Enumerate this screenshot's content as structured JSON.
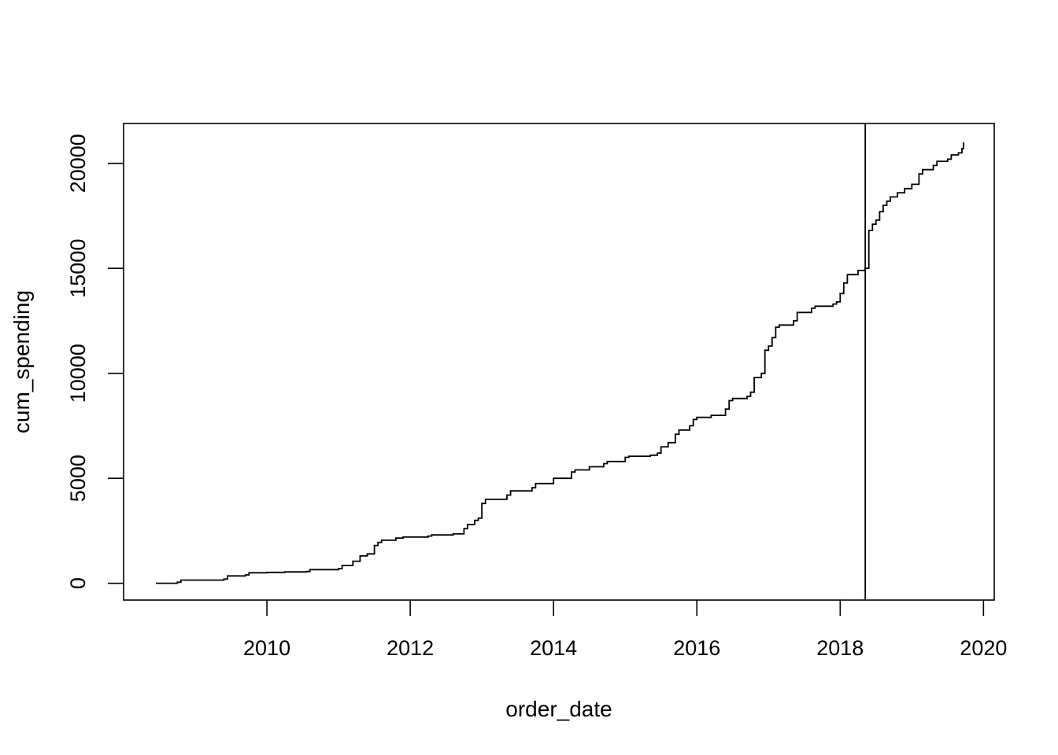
{
  "chart_data": {
    "type": "line",
    "title": "",
    "xlabel": "order_date",
    "ylabel": "cum_spending",
    "xlim": [
      2008.0,
      2020.15
    ],
    "ylim": [
      -800,
      21900
    ],
    "x_ticks": [
      "2010",
      "2012",
      "2014",
      "2016",
      "2018",
      "2020"
    ],
    "y_ticks": [
      "0",
      "5000",
      "10000",
      "15000",
      "20000"
    ],
    "grid": false,
    "legend": "none",
    "line_color": "#000000",
    "vline": {
      "x": 2018.35
    },
    "series": [
      {
        "x": [
          2008.45,
          2008.75,
          2008.8,
          2009.4,
          2009.45,
          2009.7,
          2009.75,
          2010.0,
          2010.25,
          2010.55,
          2010.6,
          2011.0,
          2011.05,
          2011.2,
          2011.3,
          2011.4,
          2011.5,
          2011.55,
          2011.6,
          2011.8,
          2011.9,
          2012.0,
          2012.25,
          2012.3,
          2012.6,
          2012.75,
          2012.8,
          2012.9,
          2012.95,
          2013.0,
          2013.05,
          2013.35,
          2013.4,
          2013.7,
          2013.75,
          2014.0,
          2014.25,
          2014.3,
          2014.5,
          2014.7,
          2014.75,
          2015.0,
          2015.05,
          2015.35,
          2015.45,
          2015.5,
          2015.6,
          2015.7,
          2015.75,
          2015.9,
          2015.95,
          2016.0,
          2016.2,
          2016.4,
          2016.45,
          2016.5,
          2016.7,
          2016.75,
          2016.8,
          2016.9,
          2016.95,
          2017.0,
          2017.05,
          2017.1,
          2017.15,
          2017.35,
          2017.4,
          2017.6,
          2017.65,
          2017.9,
          2017.95,
          2018.0,
          2018.05,
          2018.1,
          2018.25,
          2018.35,
          2018.4,
          2018.45,
          2018.5,
          2018.55,
          2018.6,
          2018.65,
          2018.7,
          2018.8,
          2018.9,
          2019.0,
          2019.1,
          2019.15,
          2019.3,
          2019.35,
          2019.5,
          2019.55,
          2019.65,
          2019.7,
          2019.72
        ],
        "y": [
          0,
          50,
          150,
          200,
          350,
          400,
          500,
          520,
          540,
          560,
          650,
          700,
          850,
          1050,
          1300,
          1400,
          1800,
          1950,
          2050,
          2150,
          2200,
          2200,
          2250,
          2300,
          2350,
          2600,
          2800,
          3000,
          3100,
          3800,
          4000,
          4200,
          4400,
          4550,
          4750,
          5000,
          5300,
          5400,
          5550,
          5700,
          5800,
          6000,
          6050,
          6100,
          6200,
          6500,
          6700,
          7100,
          7300,
          7500,
          7800,
          7900,
          8000,
          8300,
          8700,
          8800,
          8900,
          9100,
          9800,
          10000,
          11100,
          11300,
          11700,
          12200,
          12300,
          12500,
          12900,
          13100,
          13200,
          13300,
          13400,
          13800,
          14300,
          14700,
          14900,
          15000,
          16800,
          17100,
          17300,
          17700,
          18000,
          18200,
          18400,
          18600,
          18800,
          19000,
          19500,
          19700,
          19900,
          20100,
          20200,
          20400,
          20500,
          20700,
          21000
        ]
      }
    ]
  }
}
